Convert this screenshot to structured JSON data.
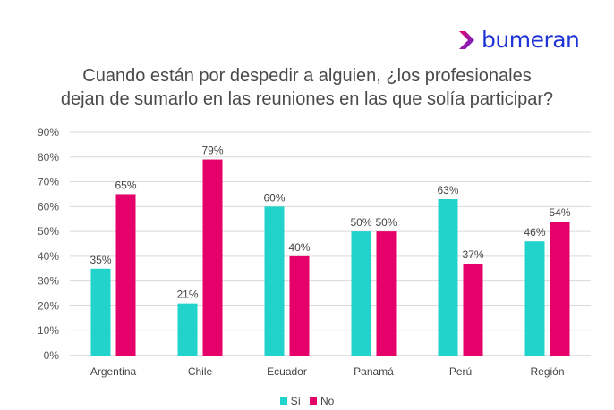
{
  "brand": {
    "name": "bumeran",
    "icon": "chevron-right-icon"
  },
  "chart_data": {
    "type": "bar",
    "title_lines": [
      "Cuando están por despedir a alguien, ¿los profesionales",
      "dejan de sumarlo en las reuniones en las que solía participar?"
    ],
    "categories": [
      "Argentina",
      "Chile",
      "Ecuador",
      "Panamá",
      "Perú",
      "Región"
    ],
    "series": [
      {
        "name": "Sí",
        "color": "#22d3cc",
        "values": [
          35,
          21,
          60,
          50,
          63,
          46
        ],
        "labels": [
          "35%",
          "21%",
          "60%",
          "50%",
          "63%",
          "46%"
        ]
      },
      {
        "name": "No",
        "color": "#e5006a",
        "values": [
          65,
          79,
          40,
          50,
          37,
          54
        ],
        "labels": [
          "65%",
          "79%",
          "40%",
          "50%",
          "37%",
          "54%"
        ]
      }
    ],
    "ylim": [
      0,
      90
    ],
    "yticks": [
      0,
      10,
      20,
      30,
      40,
      50,
      60,
      70,
      80,
      90
    ],
    "ytick_labels": [
      "0%",
      "10%",
      "20%",
      "30%",
      "40%",
      "50%",
      "60%",
      "70%",
      "80%",
      "90%"
    ],
    "grid": true,
    "legend_position": "bottom"
  }
}
